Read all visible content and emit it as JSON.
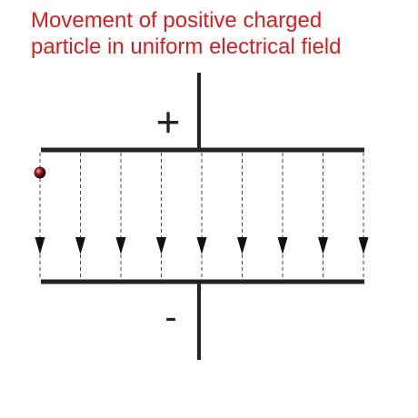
{
  "title": {
    "line1": "Movement of positive charged",
    "line2": "particle in uniform electrical field"
  },
  "plates": {
    "positive_sign": "+",
    "negative_sign": "-"
  },
  "field_lines": {
    "count": 9,
    "direction": "down"
  },
  "colors": {
    "title": "#d42020",
    "plate": "#222222",
    "field_line": "#444444",
    "particle": "#8a1a1a"
  }
}
